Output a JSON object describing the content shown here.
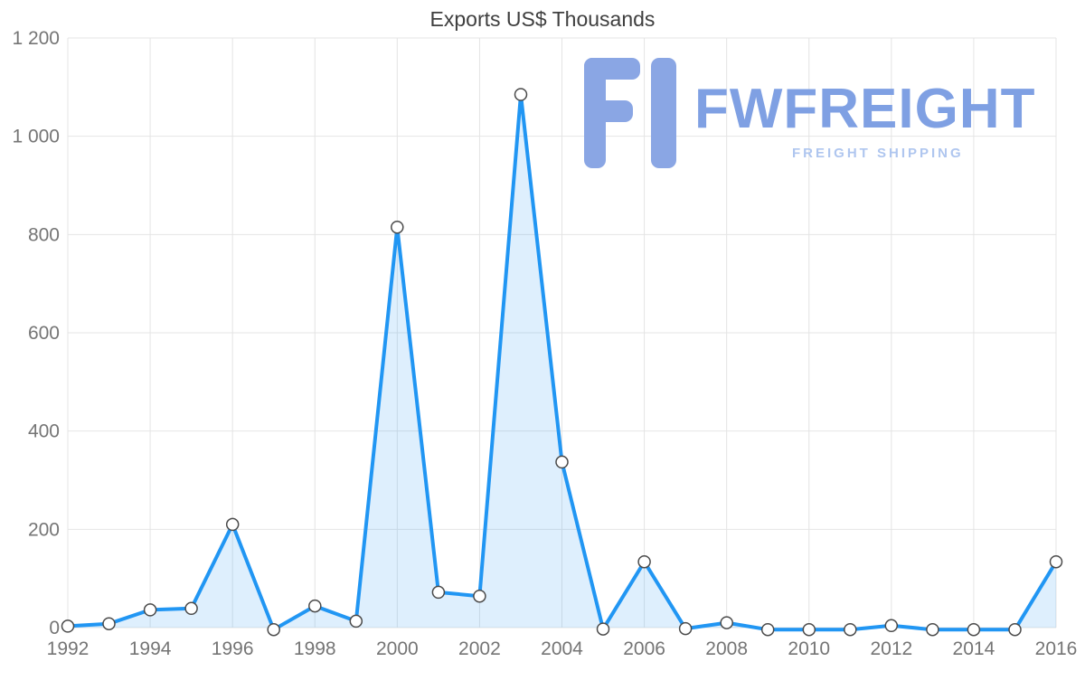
{
  "chart_data": {
    "type": "area",
    "title": "Exports US$ Thousands",
    "series_name": "Exports",
    "x": [
      1992,
      1993,
      1994,
      1995,
      1996,
      1997,
      1998,
      1999,
      2000,
      2001,
      2002,
      2003,
      2004,
      2005,
      2006,
      2007,
      2008,
      2009,
      2010,
      2011,
      2012,
      2013,
      2014,
      2015,
      2016
    ],
    "values": [
      3,
      8,
      36,
      39,
      210,
      -4,
      44,
      13,
      815,
      72,
      64,
      1085,
      337,
      -3,
      134,
      -2,
      10,
      -4,
      -4,
      -4,
      4,
      -4,
      -4,
      -4,
      134
    ],
    "xlabel": "",
    "ylabel": "",
    "ylim": [
      0,
      1200
    ],
    "y_ticks": [
      0,
      200,
      400,
      600,
      800,
      1000,
      1200
    ],
    "y_tick_labels": [
      "0",
      "200",
      "400",
      "600",
      "800",
      "1 000",
      "1 200"
    ],
    "x_tick_labels": [
      "1992",
      "1994",
      "1996",
      "1998",
      "2000",
      "2002",
      "2004",
      "2006",
      "2008",
      "2010",
      "2012",
      "2014",
      "2016"
    ],
    "grid": true,
    "legend": "none",
    "line_color": "#2196F3",
    "area_color": "#2196F3",
    "area_opacity": 0.15,
    "grid_color": "#E4E4E4",
    "tick_color": "#757575",
    "title_color": "#3f3f3f",
    "marker_fill": "#ffffff",
    "marker_stroke": "#4a4a4a"
  },
  "watermark": {
    "brand": "FWFREIGHT",
    "tagline": "FREIGHT SHIPPING",
    "logo_color": "#8AA6E4",
    "brand_color": "#7FA0E3",
    "tagline_color": "#AFC6EF"
  }
}
